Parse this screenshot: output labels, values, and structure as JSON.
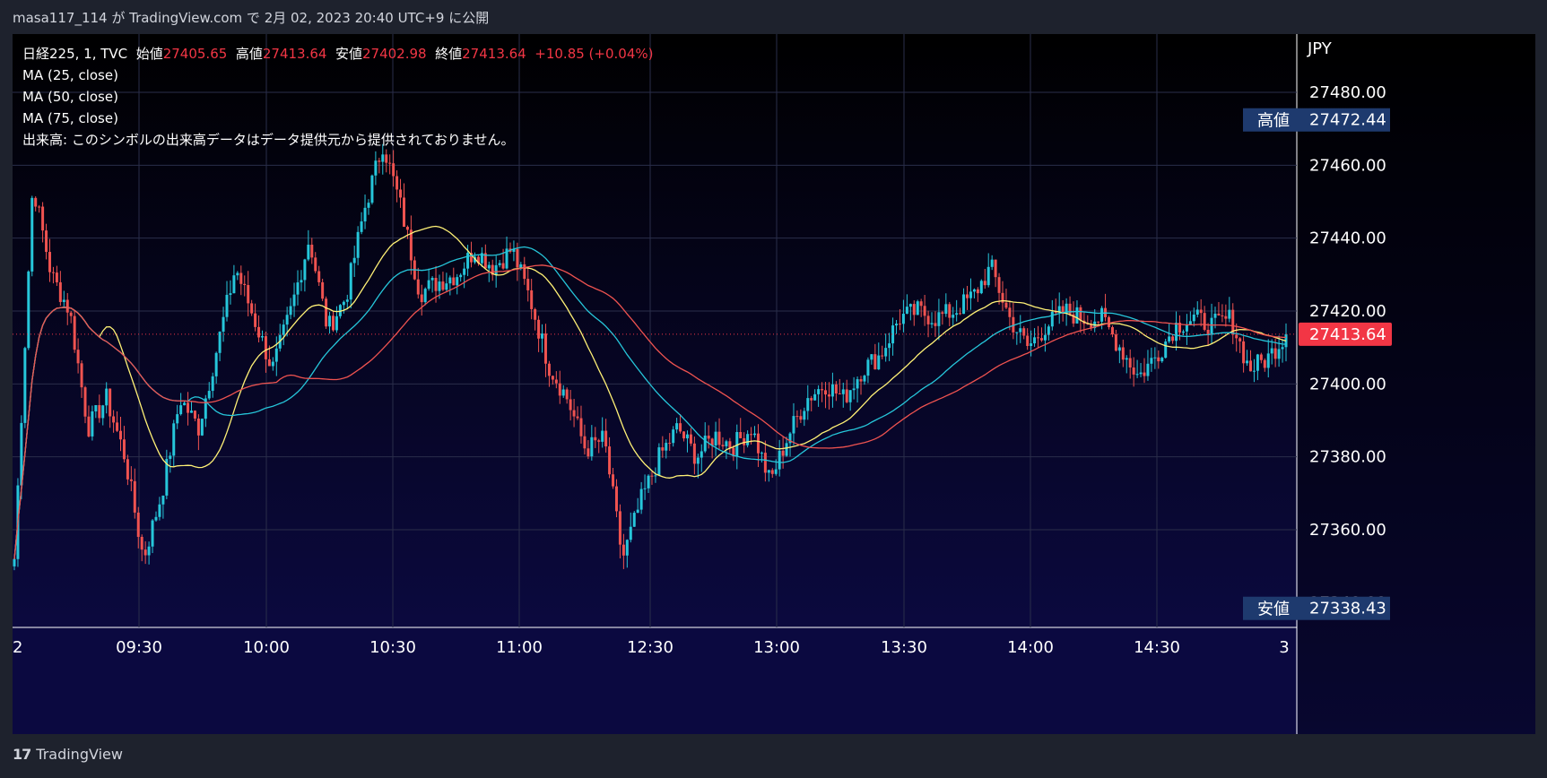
{
  "header": {
    "publisher": "masa117_114 が TradingView.com で 2月 02, 2023 20:40 UTC+9 に公開"
  },
  "legend": {
    "symbol": "日経225, 1, TVC",
    "open_label": "始値",
    "open": "27405.65",
    "high_label": "高値",
    "high": "27413.64",
    "low_label": "安値",
    "low": "27402.98",
    "close_label": "終値",
    "close": "27413.64",
    "change": "+10.85 (+0.04%)",
    "ma1": "MA (25, close)",
    "ma2": "MA (50, close)",
    "ma3": "MA (75, close)",
    "volume_note": "出来高: このシンボルの出来高データはデータ提供元から提供されておりません。"
  },
  "price_axis": {
    "currency": "JPY",
    "high_badge_label": "高値",
    "high_badge_value": "27472.44",
    "low_badge_label": "安値",
    "low_badge_value": "27338.43",
    "last_price": "27413.64"
  },
  "footer": {
    "brand": "TradingView"
  },
  "colors": {
    "up": "#26c6da",
    "down": "#ef5350",
    "ma25": "#fff176",
    "ma50": "#26c6da",
    "ma75": "#ef5350",
    "last_price_badge": "#f23645",
    "hl_badge": "#1e3a6e"
  },
  "chart_data": {
    "type": "candlestick",
    "ylim": [
      27340,
      27480
    ],
    "y_ticks": [
      27360,
      27380,
      27400,
      27420,
      27440,
      27460,
      27480
    ],
    "x_ticks": [
      "2",
      "09:30",
      "10:00",
      "10:30",
      "11:00",
      "12:30",
      "13:00",
      "13:30",
      "14:00",
      "14:30",
      "3"
    ],
    "last_price": 27413.64,
    "day_high": 27472.44,
    "day_low": 27338.43,
    "price_anchors": [
      27352,
      27455,
      27430,
      27420,
      27388,
      27396,
      27380,
      27352,
      27370,
      27396,
      27388,
      27410,
      27432,
      27418,
      27404,
      27420,
      27440,
      27415,
      27424,
      27448,
      27466,
      27448,
      27425,
      27428,
      27430,
      27437,
      27432,
      27437,
      27423,
      27405,
      27396,
      27382,
      27385,
      27352,
      27368,
      27380,
      27388,
      27380,
      27386,
      27383,
      27388,
      27373,
      27386,
      27396,
      27400,
      27396,
      27404,
      27408,
      27418,
      27420,
      27418,
      27420,
      27424,
      27432,
      27418,
      27410,
      27416,
      27420,
      27418,
      27418,
      27410,
      27402,
      27408,
      27416,
      27418,
      27416,
      27418,
      27404,
      27407,
      27413.64
    ],
    "series": [
      {
        "name": "MA (25, close)",
        "source": "close",
        "period": 25
      },
      {
        "name": "MA (50, close)",
        "source": "close",
        "period": 50
      },
      {
        "name": "MA (75, close)",
        "source": "close",
        "period": 75
      }
    ]
  }
}
